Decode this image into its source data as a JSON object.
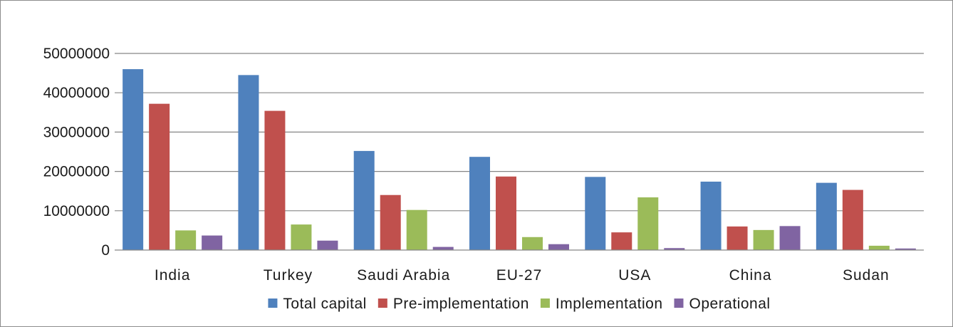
{
  "chart_data": {
    "type": "bar",
    "categories": [
      "India",
      "Turkey",
      "Saudi Arabia",
      "EU-27",
      "USA",
      "China",
      "Sudan"
    ],
    "series": [
      {
        "name": "Total capital",
        "color": "#4f81bd",
        "values": [
          46000000,
          44500000,
          25200000,
          23700000,
          18600000,
          17400000,
          17100000
        ]
      },
      {
        "name": "Pre-implementation",
        "color": "#c0504d",
        "values": [
          37200000,
          35400000,
          14000000,
          18700000,
          4500000,
          6000000,
          15300000
        ]
      },
      {
        "name": "Implementation",
        "color": "#9bbb59",
        "values": [
          5000000,
          6500000,
          10200000,
          3300000,
          13400000,
          5100000,
          1100000
        ]
      },
      {
        "name": "Operational",
        "color": "#8064a2",
        "values": [
          3700000,
          2400000,
          800000,
          1500000,
          500000,
          6100000,
          400000
        ]
      }
    ],
    "yticks": [
      "0",
      "10000000",
      "20000000",
      "30000000",
      "40000000",
      "50000000"
    ],
    "ylim": [
      0,
      50000000
    ],
    "grid": true,
    "legend": "bottom",
    "title": "",
    "xlabel": "",
    "ylabel": ""
  }
}
